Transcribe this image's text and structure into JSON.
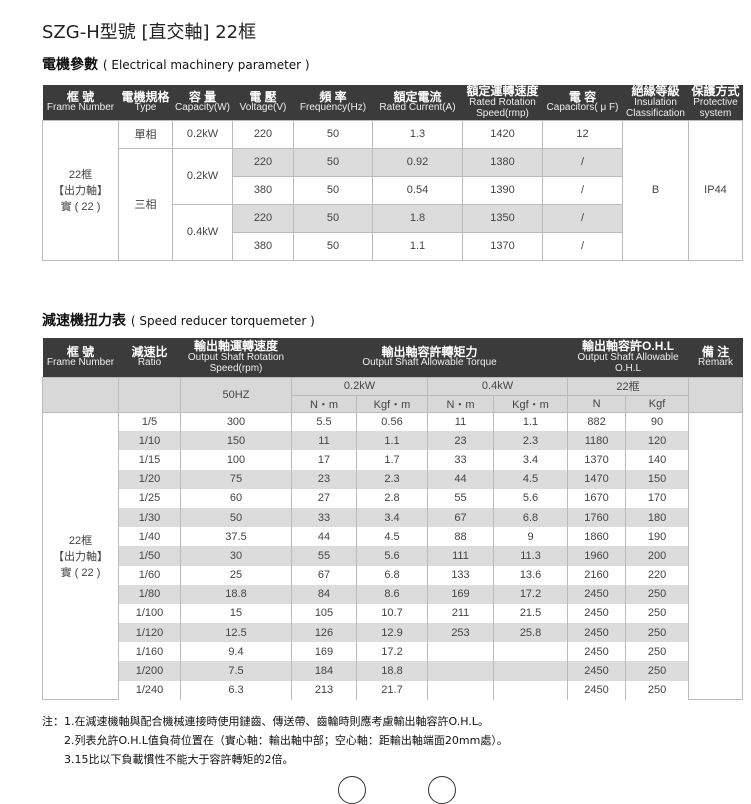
{
  "title": "SZG-H型號 [直交軸] 22框",
  "motor": {
    "heading": "電機參數",
    "heading_en": "( Electrical machinery parameter )",
    "headers": [
      [
        "框 號",
        "Frame Number"
      ],
      [
        "電機規格",
        "Type"
      ],
      [
        "容 量",
        "Capacity(W)"
      ],
      [
        "電 壓",
        "Voltage(V)"
      ],
      [
        "頻 率",
        "Frequency(Hz)"
      ],
      [
        "額定電流",
        "Rated Current(A)"
      ],
      [
        "額定運轉速度",
        "Rated Rotation Speed(rmp)"
      ],
      [
        "電 容",
        "Capacitors( μ F)"
      ],
      [
        "絕緣等級",
        "Insulation Classification"
      ],
      [
        "保護方式",
        "Protective system"
      ]
    ],
    "frame": [
      "22框",
      "【出力軸】",
      "實 ( 22 )"
    ],
    "single_phase": "單相",
    "three_phase": "三相",
    "cap_02": "0.2kW",
    "cap_04": "0.4kW",
    "rows": [
      [
        "220",
        "50",
        "1.3",
        "1420",
        "12"
      ],
      [
        "220",
        "50",
        "0.92",
        "1380",
        "/"
      ],
      [
        "380",
        "50",
        "0.54",
        "1390",
        "/"
      ],
      [
        "220",
        "50",
        "1.8",
        "1350",
        "/"
      ],
      [
        "380",
        "50",
        "1.1",
        "1370",
        "/"
      ]
    ],
    "insulation": "B",
    "protection": "IP44"
  },
  "reducer": {
    "heading": "減速機扭力表",
    "heading_en": "( Speed reducer torquemeter )",
    "headers": [
      [
        "框 號",
        "Frame Number"
      ],
      [
        "減速比",
        "Ratio"
      ],
      [
        "輸出軸運轉速度",
        "Output Shaft Rotation Speed(rpm)"
      ],
      [
        "輸出軸容許轉矩力",
        "Output Shaft Allowable Torque"
      ],
      [
        "輸出軸容許O.H.L",
        "Output Shaft Allowable O.H.L"
      ],
      [
        "備 注",
        "Remark"
      ]
    ],
    "hz": "50HZ",
    "p02": "0.2kW",
    "p04": "0.4kW",
    "frame22": "22框",
    "units": [
      "N・m",
      "Kgf・m",
      "N・m",
      "Kgf・m",
      "N",
      "Kgf"
    ],
    "frame": [
      "22框",
      "【出力軸】",
      "實 ( 22 )"
    ],
    "rows": [
      [
        "1/5",
        "300",
        "5.5",
        "0.56",
        "11",
        "1.1",
        "882",
        "90"
      ],
      [
        "1/10",
        "150",
        "11",
        "1.1",
        "23",
        "2.3",
        "1180",
        "120"
      ],
      [
        "1/15",
        "100",
        "17",
        "1.7",
        "33",
        "3.4",
        "1370",
        "140"
      ],
      [
        "1/20",
        "75",
        "23",
        "2.3",
        "44",
        "4.5",
        "1470",
        "150"
      ],
      [
        "1/25",
        "60",
        "27",
        "2.8",
        "55",
        "5.6",
        "1670",
        "170"
      ],
      [
        "1/30",
        "50",
        "33",
        "3.4",
        "67",
        "6.8",
        "1760",
        "180"
      ],
      [
        "1/40",
        "37.5",
        "44",
        "4.5",
        "88",
        "9",
        "1860",
        "190"
      ],
      [
        "1/50",
        "30",
        "55",
        "5.6",
        "111",
        "11.3",
        "1960",
        "200"
      ],
      [
        "1/60",
        "25",
        "67",
        "6.8",
        "133",
        "13.6",
        "2160",
        "220"
      ],
      [
        "1/80",
        "18.8",
        "84",
        "8.6",
        "169",
        "17.2",
        "2450",
        "250"
      ],
      [
        "1/100",
        "15",
        "105",
        "10.7",
        "211",
        "21.5",
        "2450",
        "250"
      ],
      [
        "1/120",
        "12.5",
        "126",
        "12.9",
        "253",
        "25.8",
        "2450",
        "250"
      ],
      [
        "1/160",
        "9.4",
        "169",
        "17.2",
        "",
        "",
        "2450",
        "250"
      ],
      [
        "1/200",
        "7.5",
        "184",
        "18.8",
        "",
        "",
        "2450",
        "250"
      ],
      [
        "1/240",
        "6.3",
        "213",
        "21.7",
        "",
        "",
        "2450",
        "250"
      ]
    ]
  },
  "notes": [
    "注：1.在減速機軸與配合機械連接時使用鏈齒、傳送帶、齒輪時則應考慮輸出軸容許O.H.L。",
    "2.列表允許O.H.L值負荷位置在（實心軸：輸出軸中部；空心軸：距輸出軸端面20mm處）。",
    "3.15比以下負載慣性不能大于容許轉矩的2倍。"
  ]
}
